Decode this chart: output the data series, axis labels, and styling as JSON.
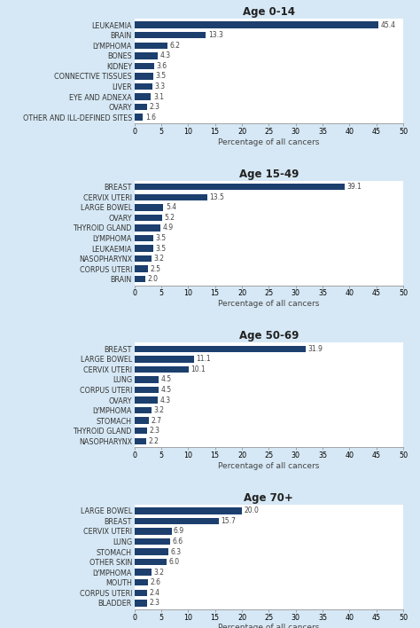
{
  "charts": [
    {
      "title": "Age 0-14",
      "categories": [
        "LEUKAEMIA",
        "BRAIN",
        "LYMPHOMA",
        "BONES",
        "KIDNEY",
        "CONNECTIVE TISSUES",
        "LIVER",
        "EYE AND ADNEXA",
        "OVARY",
        "OTHER AND ILL-DEFINED SITES"
      ],
      "values": [
        45.4,
        13.3,
        6.2,
        4.3,
        3.6,
        3.5,
        3.3,
        3.1,
        2.3,
        1.6
      ]
    },
    {
      "title": "Age 15-49",
      "categories": [
        "BREAST",
        "CERVIX UTERI",
        "LARGE BOWEL",
        "OVARY",
        "THYROID GLAND",
        "LYMPHOMA",
        "LEUKAEMIA",
        "NASOPHARYNX",
        "CORPUS UTERI",
        "BRAIN"
      ],
      "values": [
        39.1,
        13.5,
        5.4,
        5.2,
        4.9,
        3.5,
        3.5,
        3.2,
        2.5,
        2.0
      ]
    },
    {
      "title": "Age 50-69",
      "categories": [
        "BREAST",
        "LARGE BOWEL",
        "CERVIX UTERI",
        "LUNG",
        "CORPUS UTERI",
        "OVARY",
        "LYMPHOMA",
        "STOMACH",
        "THYROID GLAND",
        "NASOPHARYNX"
      ],
      "values": [
        31.9,
        11.1,
        10.1,
        4.5,
        4.5,
        4.3,
        3.2,
        2.7,
        2.3,
        2.2
      ]
    },
    {
      "title": "Age 70+",
      "categories": [
        "LARGE BOWEL",
        "BREAST",
        "CERVIX UTERI",
        "LUNG",
        "STOMACH",
        "OTHER SKIN",
        "LYMPHOMA",
        "MOUTH",
        "CORPUS UTERI",
        "BLADDER"
      ],
      "values": [
        20.0,
        15.7,
        6.9,
        6.6,
        6.3,
        6.0,
        3.2,
        2.6,
        2.4,
        2.3
      ]
    }
  ],
  "bar_color": "#1c3f6e",
  "bg_color": "#d6e8f5",
  "chart_bg": "#ffffff",
  "xlabel": "Percentage of all cancers",
  "xlim": [
    0,
    50
  ],
  "xticks": [
    0,
    5,
    10,
    15,
    20,
    25,
    30,
    35,
    40,
    45,
    50
  ],
  "title_fontsize": 8.5,
  "label_fontsize": 5.8,
  "value_fontsize": 5.5,
  "xlabel_fontsize": 6.5,
  "tick_fontsize": 5.8
}
